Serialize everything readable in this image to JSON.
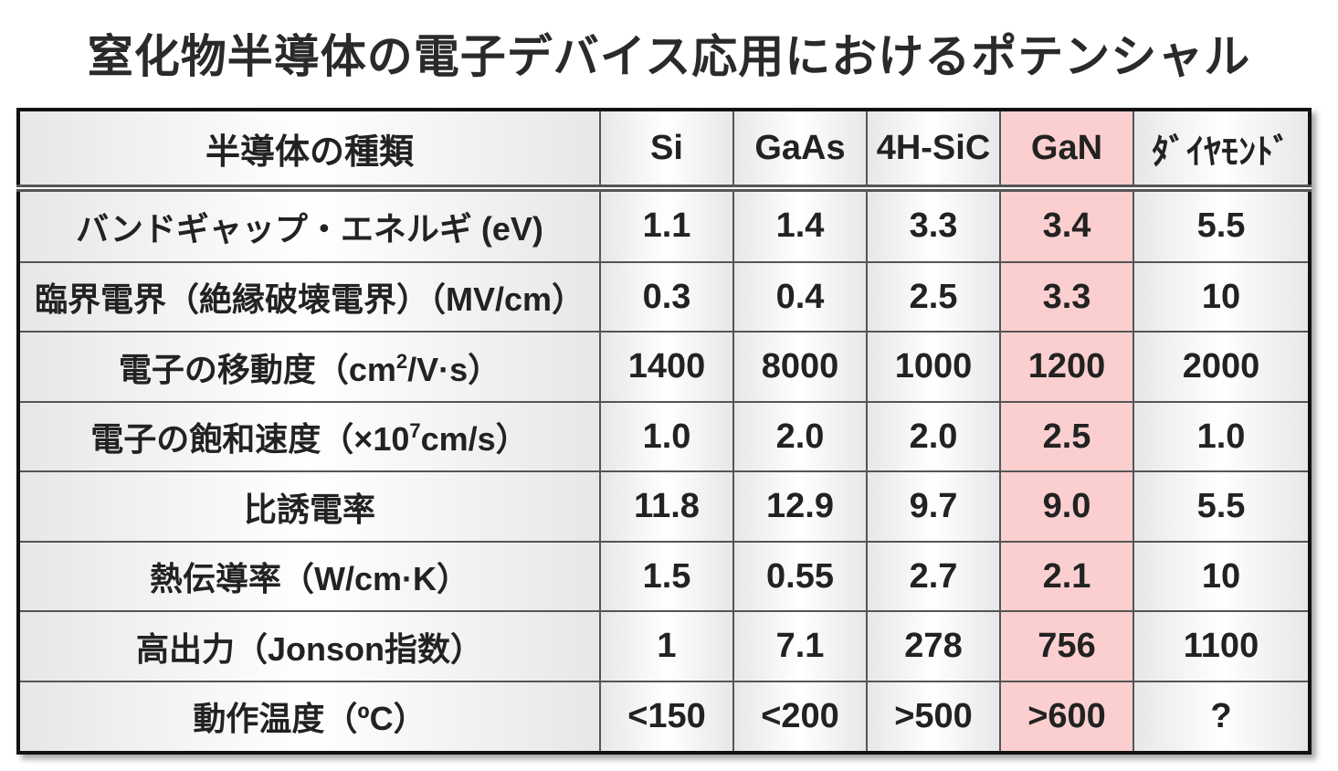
{
  "title": "窒化物半導体の電子デバイス応用におけるポテンシャル",
  "table": {
    "header": [
      "半導体の種類",
      "Si",
      "GaAs",
      "4H-SiC",
      "GaN",
      "ﾀﾞｲﾔﾓﾝﾄﾞ"
    ],
    "rows": [
      [
        [
          "バンドギャップ・エネルギ (eV)"
        ],
        "1.1",
        "1.4",
        "3.3",
        "3.4",
        "5.5"
      ],
      [
        [
          "臨界電界（絶縁破壊電界）（MV/cm）"
        ],
        "0.3",
        "0.4",
        "2.5",
        "3.3",
        "10"
      ],
      [
        [
          "電子の移動度（cm",
          "2",
          "/V·s）"
        ],
        "1400",
        "8000",
        "1000",
        "1200",
        "2000"
      ],
      [
        [
          "電子の飽和速度（×10",
          "7",
          "cm/s）"
        ],
        "1.0",
        "2.0",
        "2.0",
        "2.5",
        "1.0"
      ],
      [
        [
          "比誘電率"
        ],
        "11.8",
        "12.9",
        "9.7",
        "9.0",
        "5.5"
      ],
      [
        [
          "熱伝導率（W/cm·K）"
        ],
        "1.5",
        "0.55",
        "2.7",
        "2.1",
        "10"
      ],
      [
        [
          "高出力（Jonson指数）"
        ],
        "1",
        "7.1",
        "278",
        "756",
        "1100"
      ],
      [
        [
          "動作温度（ºC）"
        ],
        "<150",
        "<200",
        ">500",
        ">600",
        "?"
      ]
    ]
  }
}
